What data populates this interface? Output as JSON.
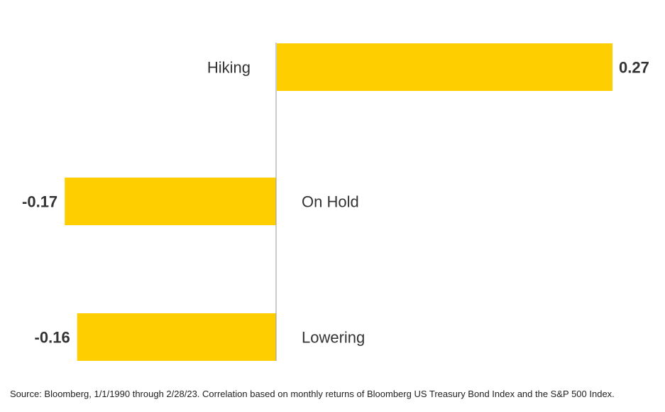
{
  "chart_data": {
    "type": "bar",
    "orientation": "horizontal",
    "categories": [
      "Hiking",
      "On Hold",
      "Lowering"
    ],
    "values": [
      0.27,
      -0.17,
      -0.16
    ],
    "value_labels": [
      "0.27",
      "-0.17",
      "-0.16"
    ],
    "title": "",
    "xlabel": "",
    "ylabel": "",
    "grid": false,
    "colors": {
      "bar": "#FFCE00",
      "axis": "#999999",
      "text": "#333333"
    }
  },
  "source_note": "Source: Bloomberg, 1/1/1990 through 2/28/23. Correlation based on monthly returns of Bloomberg US Treasury Bond Index and the S&P 500 Index."
}
